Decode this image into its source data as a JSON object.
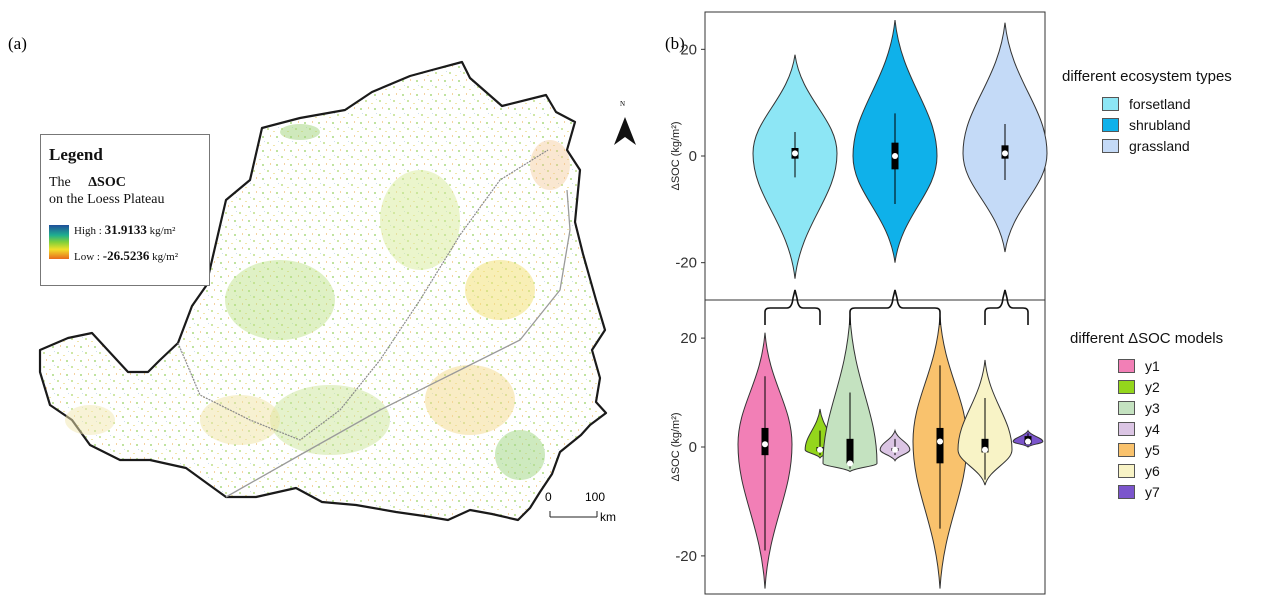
{
  "panel_a": {
    "label": "(a)",
    "legend": {
      "title": "Legend",
      "line1_prefix": "The",
      "line1_bold": "ΔSOC",
      "line2": "on the Loess Plateau",
      "high_prefix": "High :",
      "high_value": "31.9133",
      "high_unit": "kg/m²",
      "low_prefix": "Low :",
      "low_value": "-26.5236",
      "low_unit": "kg/m²"
    },
    "north_label": "N",
    "scale": {
      "zero": "0",
      "hundred": "100",
      "unit": "km"
    },
    "colors": {
      "outline": "#1a1a1a",
      "zone_line": "#8a8a8a"
    }
  },
  "panel_b": {
    "label": "(b)"
  },
  "chart_data": [
    {
      "type": "violin",
      "ylabel": "ΔSOC (kg/m²)",
      "ylim": [
        -27,
        27
      ],
      "yticks": [
        20,
        0,
        -20
      ],
      "legend_title": "different ecosystem types",
      "legend_placement": "right",
      "series": [
        {
          "name": "forsetland",
          "color": "#8de6f5",
          "max": 19,
          "min": -23,
          "q1": -0.5,
          "median": 0.5,
          "q3": 1.5,
          "whisker_low": -4,
          "whisker_high": 4.5
        },
        {
          "name": "shrubland",
          "color": "#0fb1ea",
          "max": 25.5,
          "min": -20,
          "q1": -2.5,
          "median": 0,
          "q3": 2.5,
          "whisker_low": -9,
          "whisker_high": 8
        },
        {
          "name": "grassland",
          "color": "#c4daf7",
          "max": 25,
          "min": -18,
          "q1": -0.5,
          "median": 0.5,
          "q3": 2,
          "whisker_low": -4.5,
          "whisker_high": 6
        }
      ]
    },
    {
      "type": "violin",
      "ylabel": "ΔSOC (kg/m²)",
      "ylim": [
        -27,
        27
      ],
      "yticks": [
        20,
        0,
        -20
      ],
      "legend_title": "different ΔSOC models",
      "legend_placement": "right",
      "series": [
        {
          "name": "y1",
          "color": "#f27fb6",
          "max": 21,
          "min": -26,
          "q1": -1.5,
          "median": 0.5,
          "q3": 3.5,
          "whisker_low": -19,
          "whisker_high": 13
        },
        {
          "name": "y2",
          "color": "#94d61c",
          "max": 7,
          "min": -2,
          "q1": -0.8,
          "median": -0.5,
          "q3": 0,
          "whisker_low": -1.5,
          "whisker_high": 3
        },
        {
          "name": "y3",
          "color": "#c4e2c0",
          "max": 24,
          "min": -4.5,
          "q1": -3,
          "median": -3,
          "q3": 1.5,
          "whisker_low": -4,
          "whisker_high": 10
        },
        {
          "name": "y4",
          "color": "#dbc5e4",
          "max": 3,
          "min": -2.5,
          "q1": -0.7,
          "median": -0.5,
          "q3": -0.2,
          "whisker_low": -1.5,
          "whisker_high": 1.5
        },
        {
          "name": "y5",
          "color": "#f9c26d",
          "max": 24,
          "min": -26,
          "q1": -3,
          "median": 1,
          "q3": 3.5,
          "whisker_low": -15,
          "whisker_high": 15
        },
        {
          "name": "y6",
          "color": "#f8f3c6",
          "max": 16,
          "min": -7,
          "q1": -1,
          "median": -0.5,
          "q3": 1.5,
          "whisker_low": -6,
          "whisker_high": 9
        },
        {
          "name": "y7",
          "color": "#7b55cc",
          "max": 3,
          "min": 0,
          "q1": 0.5,
          "median": 1,
          "q3": 2,
          "whisker_low": 0.3,
          "whisker_high": 2.5
        }
      ]
    }
  ]
}
